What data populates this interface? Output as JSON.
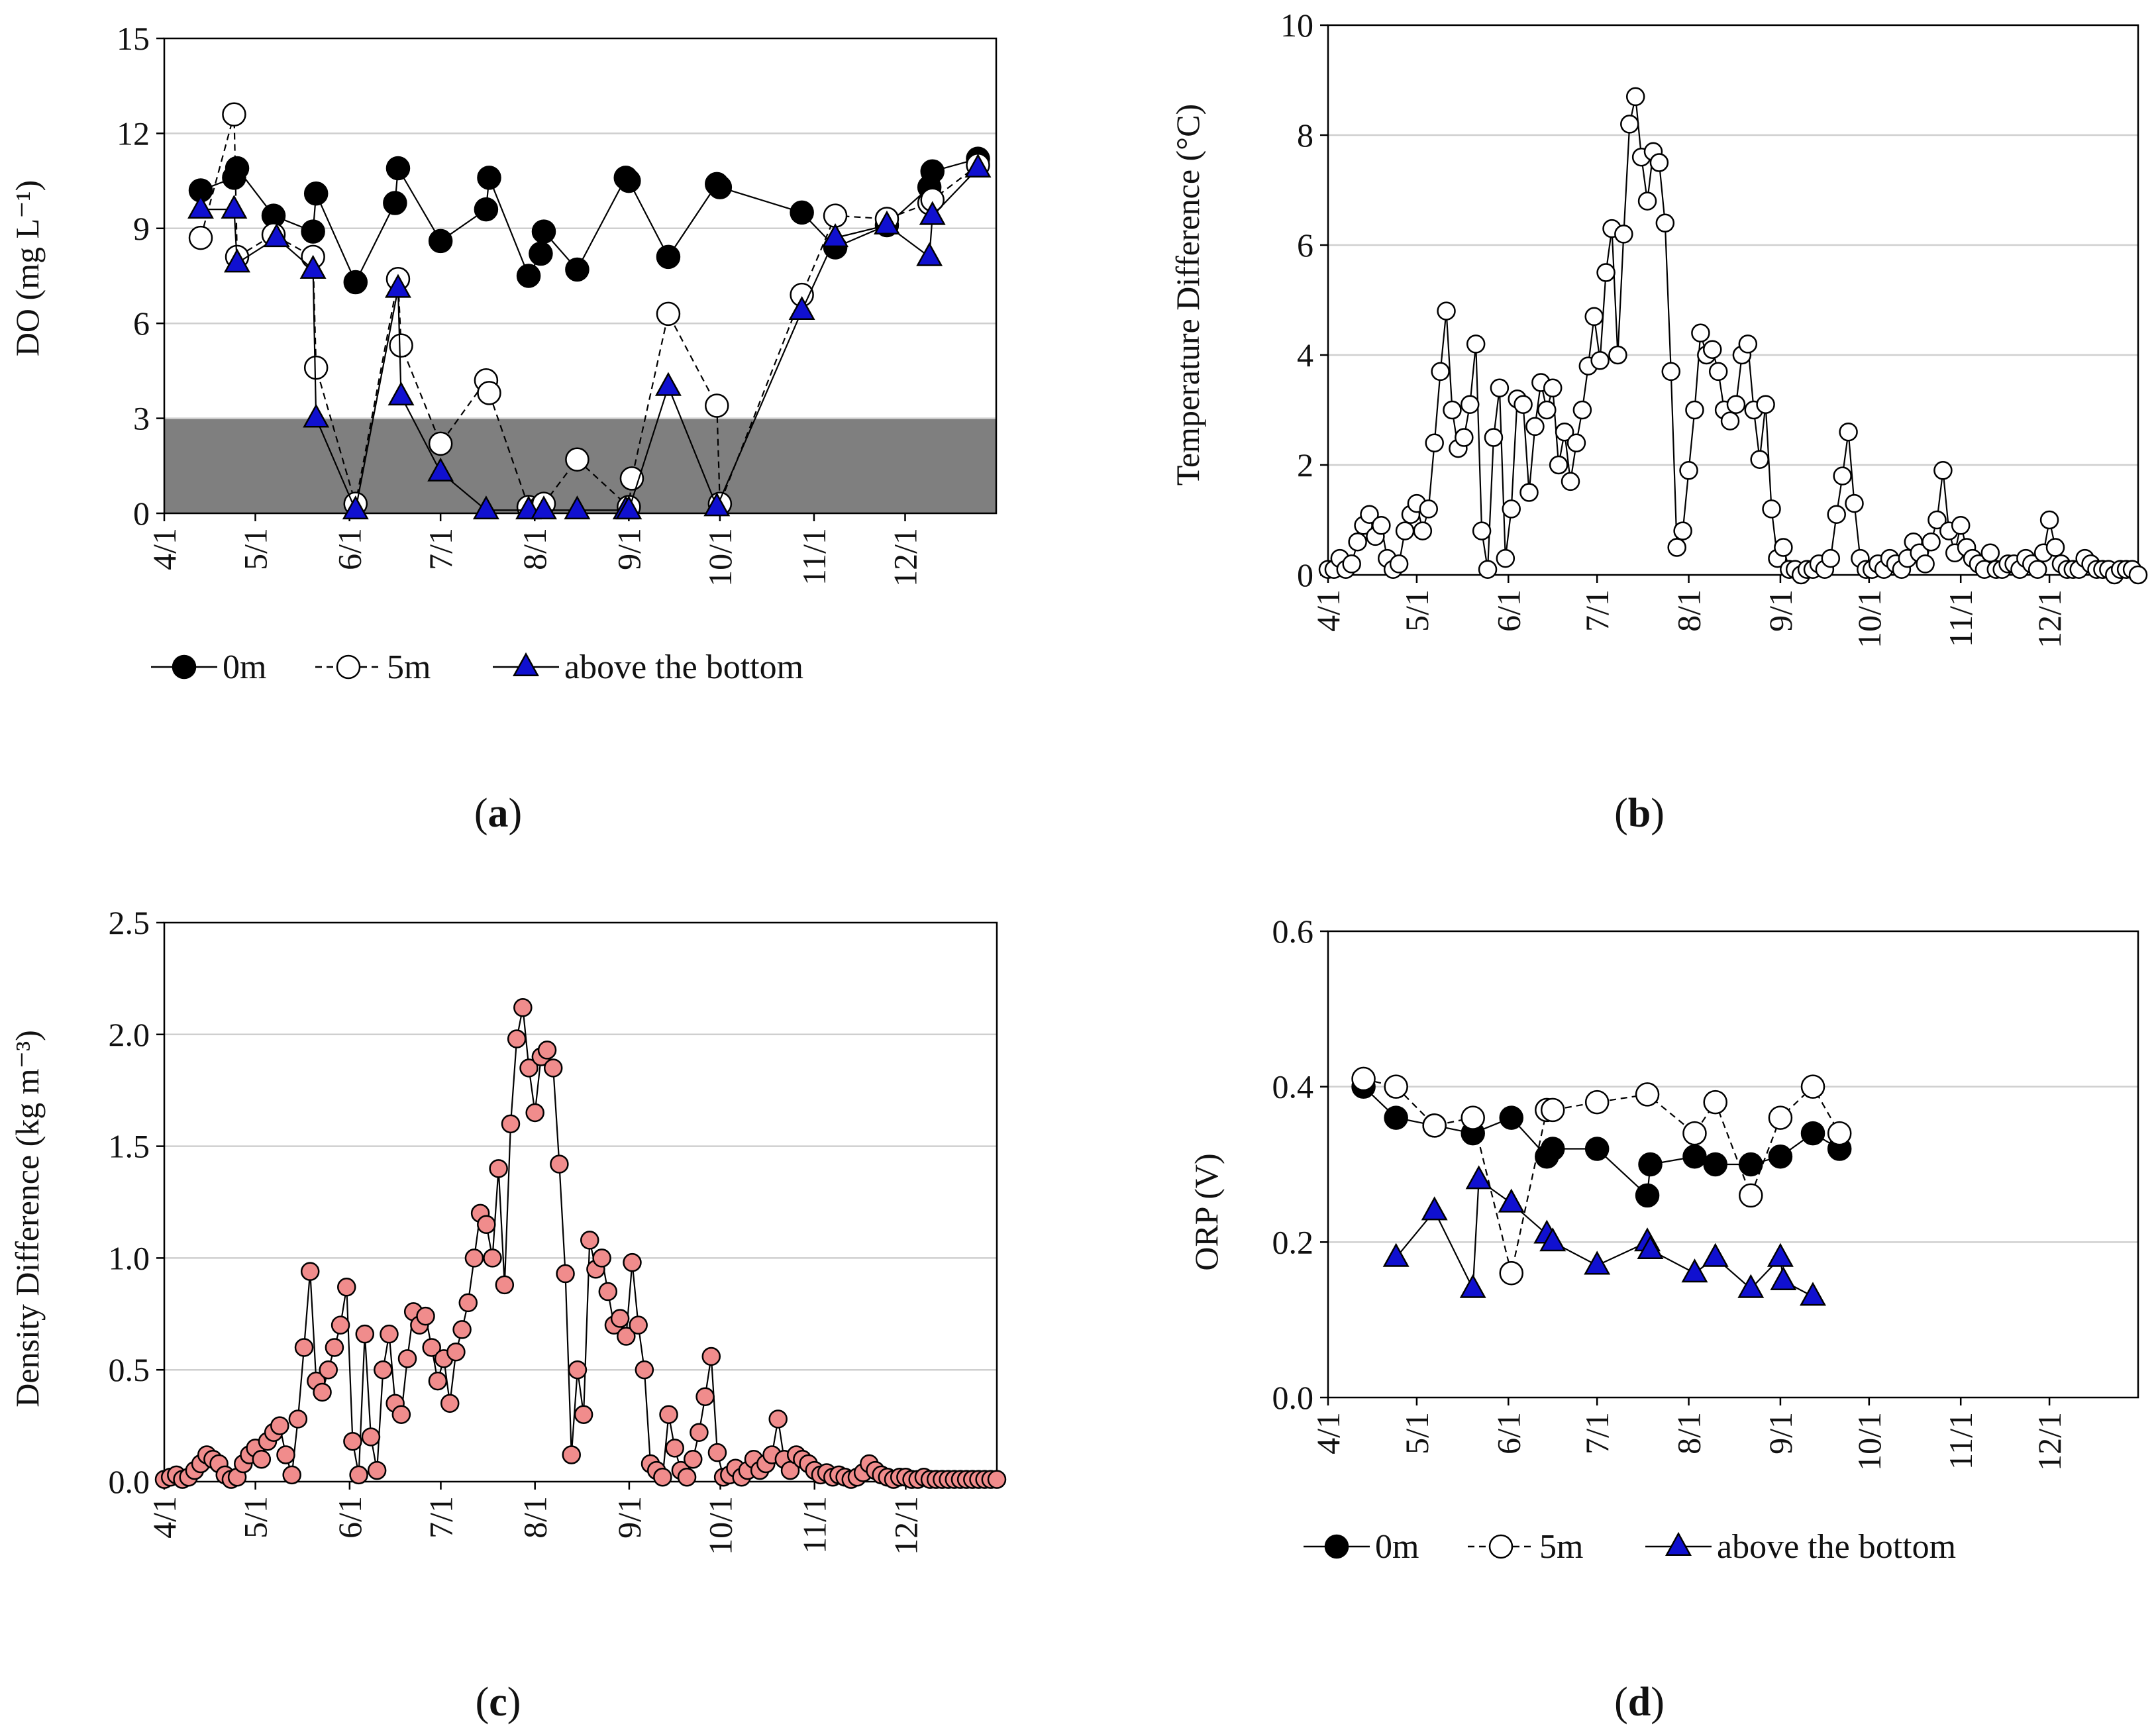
{
  "colors": {
    "blue": "#1010d0",
    "pink": "#f08c8c",
    "shade": "#7f7f7f",
    "grid": "#cfcfcf"
  },
  "panels": {
    "a": {
      "tag_letter": "a"
    },
    "b": {
      "tag_letter": "b"
    },
    "c": {
      "tag_letter": "c"
    },
    "d": {
      "tag_letter": "d"
    }
  },
  "chart_data": [
    {
      "id": "a",
      "type": "line",
      "ylabel": "DO (mg L⁻¹)",
      "xlabel": "",
      "xlim": [
        0,
        274
      ],
      "ylim": [
        0,
        15
      ],
      "yticks": [
        0,
        3,
        6,
        9,
        12,
        15
      ],
      "xtick_labels": [
        "4/1",
        "5/1",
        "6/1",
        "7/1",
        "8/1",
        "9/1",
        "10/1",
        "11/1",
        "12/1"
      ],
      "xtick_days": [
        0,
        30,
        61,
        91,
        122,
        153,
        183,
        214,
        244
      ],
      "shaded_band": [
        0,
        3
      ],
      "legend": [
        "0m",
        "5m",
        "above the bottom"
      ],
      "legend_position": "bottom",
      "grid": "horizontal",
      "series": [
        {
          "name": "0m",
          "marker": "filled-circle",
          "line": "solid",
          "x": [
            "4/13",
            "4/24",
            "4/25",
            "5/7",
            "5/20",
            "5/21",
            "6/3",
            "6/16",
            "6/17",
            "7/1",
            "7/16",
            "7/17",
            "7/30",
            "8/3",
            "8/4",
            "8/15",
            "8/31",
            "9/1",
            "9/14",
            "9/30",
            "10/1",
            "10/28",
            "11/8",
            "11/25",
            "12/9",
            "12/10",
            "12/25"
          ],
          "y": [
            10.2,
            10.6,
            10.9,
            9.4,
            8.9,
            10.1,
            7.3,
            9.8,
            10.9,
            8.6,
            9.6,
            10.6,
            7.5,
            8.2,
            8.9,
            7.7,
            10.6,
            10.5,
            8.1,
            10.4,
            10.3,
            9.5,
            8.4,
            9.1,
            10.3,
            10.8,
            11.2
          ]
        },
        {
          "name": "5m",
          "marker": "open-circle",
          "line": "dashed",
          "x": [
            "4/13",
            "4/24",
            "4/25",
            "5/7",
            "5/20",
            "5/21",
            "6/3",
            "6/17",
            "6/18",
            "7/1",
            "7/16",
            "7/17",
            "7/30",
            "8/3",
            "8/4",
            "8/15",
            "9/1",
            "9/2",
            "9/14",
            "9/30",
            "10/1",
            "10/28",
            "11/8",
            "11/25",
            "12/9",
            "12/10",
            "12/25"
          ],
          "y": [
            8.7,
            12.6,
            8.1,
            8.8,
            8.1,
            4.6,
            0.3,
            7.4,
            5.3,
            2.2,
            4.2,
            3.8,
            0.2,
            0.2,
            0.3,
            1.7,
            0.2,
            1.1,
            6.3,
            3.4,
            0.3,
            6.9,
            9.4,
            9.3,
            9.8,
            9.9,
            11.0
          ]
        },
        {
          "name": "above the bottom",
          "marker": "filled-triangle",
          "line": "solid",
          "x": [
            "4/13",
            "4/24",
            "4/25",
            "5/8",
            "5/20",
            "5/21",
            "6/3",
            "6/17",
            "6/18",
            "7/1",
            "7/16",
            "7/30",
            "8/4",
            "8/15",
            "8/31",
            "9/1",
            "9/14",
            "9/30",
            "10/28",
            "11/8",
            "11/25",
            "12/9",
            "12/10",
            "12/25"
          ],
          "y": [
            9.6,
            9.6,
            7.9,
            8.7,
            7.7,
            3.0,
            0.1,
            7.1,
            3.7,
            1.3,
            0.1,
            0.1,
            0.1,
            0.1,
            0.1,
            0.1,
            4.0,
            0.2,
            6.4,
            8.7,
            9.1,
            8.1,
            9.4,
            10.9
          ]
        }
      ]
    },
    {
      "id": "b",
      "type": "scatter",
      "ylabel": "Temperature Difference (°C)",
      "xlabel": "",
      "xlim": [
        0,
        274
      ],
      "ylim": [
        0,
        10
      ],
      "yticks": [
        0,
        2,
        4,
        6,
        8,
        10
      ],
      "xtick_labels": [
        "4/1",
        "5/1",
        "6/1",
        "7/1",
        "8/1",
        "9/1",
        "10/1",
        "11/1",
        "12/1"
      ],
      "xtick_days": [
        0,
        30,
        61,
        91,
        122,
        153,
        183,
        214,
        244
      ],
      "grid": "horizontal",
      "legend": [],
      "series": [
        {
          "name": "",
          "marker": "open-circle",
          "line": "solid",
          "x_day": [
            0,
            2,
            4,
            6,
            8,
            10,
            12,
            14,
            16,
            18,
            20,
            22,
            24,
            26,
            28,
            30,
            32,
            34,
            36,
            38,
            40,
            42,
            44,
            46,
            48,
            50,
            52,
            54,
            56,
            58,
            60,
            62,
            64,
            66,
            68,
            70,
            72,
            74,
            76,
            78,
            80,
            82,
            84,
            86,
            88,
            90,
            92,
            94,
            96,
            98,
            100,
            102,
            104,
            106,
            108,
            110,
            112,
            114,
            116,
            118,
            120,
            122,
            124,
            126,
            128,
            130,
            132,
            134,
            136,
            138,
            140,
            142,
            144,
            146,
            148,
            150,
            152,
            154,
            156,
            158,
            160,
            162,
            164,
            166,
            168,
            170,
            172,
            174,
            176,
            178,
            180,
            182,
            184,
            186,
            188,
            190,
            192,
            194,
            196,
            198,
            200,
            202,
            204,
            206,
            208,
            210,
            212,
            214,
            216,
            218,
            220,
            222,
            224,
            226,
            228,
            230,
            232,
            234,
            236,
            238,
            240,
            242,
            244,
            246,
            248,
            250,
            252,
            254,
            256,
            258,
            260,
            262,
            264,
            266,
            268,
            270,
            272,
            274
          ],
          "y": [
            0.1,
            0.1,
            0.3,
            0.1,
            0.2,
            0.6,
            0.9,
            1.1,
            0.7,
            0.9,
            0.3,
            0.1,
            0.2,
            0.8,
            1.1,
            1.3,
            0.8,
            1.2,
            2.4,
            3.7,
            4.8,
            3.0,
            2.3,
            2.5,
            3.1,
            4.2,
            0.8,
            0.1,
            2.5,
            3.4,
            0.3,
            1.2,
            3.2,
            3.1,
            1.5,
            2.7,
            3.5,
            3.0,
            3.4,
            2.0,
            2.6,
            1.7,
            2.4,
            3.0,
            3.8,
            4.7,
            3.9,
            5.5,
            6.3,
            4.0,
            6.2,
            8.2,
            8.7,
            7.6,
            6.8,
            7.7,
            7.5,
            6.4,
            3.7,
            0.5,
            0.8,
            1.9,
            3.0,
            4.4,
            4.0,
            4.1,
            3.7,
            3.0,
            2.8,
            3.1,
            4.0,
            4.2,
            3.0,
            2.1,
            3.1,
            1.2,
            0.3,
            0.5,
            0.1,
            0.1,
            0.0,
            0.1,
            0.1,
            0.2,
            0.1,
            0.3,
            1.1,
            1.8,
            2.6,
            1.3,
            0.3,
            0.1,
            0.1,
            0.2,
            0.1,
            0.3,
            0.2,
            0.1,
            0.3,
            0.6,
            0.4,
            0.2,
            0.6,
            1.0,
            1.9,
            0.8,
            0.4,
            0.9,
            0.5,
            0.3,
            0.2,
            0.1,
            0.4,
            0.1,
            0.1,
            0.2,
            0.2,
            0.1,
            0.3,
            0.2,
            0.1,
            0.4,
            1.0,
            0.5,
            0.2,
            0.1,
            0.1,
            0.1,
            0.3,
            0.2,
            0.1,
            0.1,
            0.1,
            0.0,
            0.1,
            0.1,
            0.1,
            0.0
          ]
        }
      ]
    },
    {
      "id": "c",
      "type": "scatter",
      "ylabel": "Density Difference (kg m⁻³)",
      "xlabel": "",
      "xlim": [
        0,
        274
      ],
      "ylim": [
        0,
        2.5
      ],
      "yticks": [
        0.0,
        0.5,
        1.0,
        1.5,
        2.0,
        2.5
      ],
      "ytick_labels": [
        "0.0",
        "0.5",
        "1.0",
        "1.5",
        "2.0",
        "2.5"
      ],
      "xtick_labels": [
        "4/1",
        "5/1",
        "6/1",
        "7/1",
        "8/1",
        "9/1",
        "10/1",
        "11/1",
        "12/1"
      ],
      "xtick_days": [
        0,
        30,
        61,
        91,
        122,
        153,
        183,
        214,
        244
      ],
      "grid": "horizontal",
      "legend": [],
      "series": [
        {
          "name": "",
          "marker": "filled-circle-pink",
          "line": "solid",
          "x_day": [
            0,
            2,
            4,
            6,
            8,
            10,
            12,
            14,
            16,
            18,
            20,
            22,
            24,
            26,
            28,
            30,
            32,
            34,
            36,
            38,
            40,
            42,
            44,
            46,
            48,
            50,
            52,
            54,
            56,
            58,
            60,
            62,
            64,
            66,
            68,
            70,
            72,
            74,
            76,
            78,
            80,
            82,
            84,
            86,
            88,
            90,
            92,
            94,
            96,
            98,
            100,
            102,
            104,
            106,
            108,
            110,
            112,
            114,
            116,
            118,
            120,
            122,
            124,
            126,
            128,
            130,
            132,
            134,
            136,
            138,
            140,
            142,
            144,
            146,
            148,
            150,
            152,
            154,
            156,
            158,
            160,
            162,
            164,
            166,
            168,
            170,
            172,
            174,
            176,
            178,
            180,
            182,
            184,
            186,
            188,
            190,
            192,
            194,
            196,
            198,
            200,
            202,
            204,
            206,
            208,
            210,
            212,
            214,
            216,
            218,
            220,
            222,
            224,
            226,
            228,
            230,
            232,
            234,
            236,
            238,
            240,
            242,
            244,
            246,
            248,
            250,
            252,
            254,
            256,
            258,
            260,
            262,
            264,
            266,
            268,
            270,
            272,
            274
          ],
          "y": [
            0.01,
            0.02,
            0.03,
            0.01,
            0.02,
            0.05,
            0.08,
            0.12,
            0.1,
            0.08,
            0.03,
            0.01,
            0.02,
            0.08,
            0.12,
            0.15,
            0.1,
            0.18,
            0.22,
            0.25,
            0.12,
            0.03,
            0.28,
            0.6,
            0.94,
            0.45,
            0.4,
            0.5,
            0.6,
            0.7,
            0.87,
            0.18,
            0.03,
            0.66,
            0.2,
            0.05,
            0.5,
            0.66,
            0.35,
            0.3,
            0.55,
            0.76,
            0.7,
            0.74,
            0.6,
            0.45,
            0.55,
            0.35,
            0.58,
            0.68,
            0.8,
            1.0,
            1.2,
            1.15,
            1.0,
            1.4,
            0.88,
            1.6,
            1.98,
            2.12,
            1.85,
            1.65,
            1.9,
            1.93,
            1.85,
            1.42,
            0.93,
            0.12,
            0.5,
            0.3,
            1.08,
            0.95,
            1.0,
            0.85,
            0.7,
            0.73,
            0.65,
            0.98,
            0.7,
            0.5,
            0.08,
            0.05,
            0.02,
            0.3,
            0.15,
            0.05,
            0.02,
            0.1,
            0.22,
            0.38,
            0.56,
            0.13,
            0.02,
            0.03,
            0.06,
            0.02,
            0.05,
            0.1,
            0.05,
            0.08,
            0.12,
            0.28,
            0.1,
            0.05,
            0.12,
            0.1,
            0.08,
            0.05,
            0.03,
            0.04,
            0.02,
            0.03,
            0.02,
            0.01,
            0.02,
            0.04,
            0.08,
            0.05,
            0.03,
            0.02,
            0.01,
            0.02,
            0.02,
            0.01,
            0.01,
            0.02,
            0.01,
            0.01,
            0.01,
            0.01,
            0.01,
            0.01,
            0.01,
            0.01,
            0.01,
            0.01,
            0.01,
            0.01
          ]
        }
      ]
    },
    {
      "id": "d",
      "type": "line",
      "ylabel": "ORP (V)",
      "xlabel": "",
      "xlim": [
        0,
        274
      ],
      "ylim": [
        0,
        0.6
      ],
      "yticks": [
        0.0,
        0.2,
        0.4,
        0.6
      ],
      "ytick_labels": [
        "0.0",
        "0.2",
        "0.4",
        "0.6"
      ],
      "xtick_labels": [
        "4/1",
        "5/1",
        "6/1",
        "7/1",
        "8/1",
        "9/1",
        "10/1",
        "11/1",
        "12/1"
      ],
      "xtick_days": [
        0,
        30,
        61,
        91,
        122,
        153,
        183,
        214,
        244
      ],
      "legend": [
        "0m",
        "5m",
        "above the bottom"
      ],
      "legend_position": "bottom",
      "grid": "horizontal",
      "series": [
        {
          "name": "0m",
          "marker": "filled-circle",
          "line": "solid",
          "x_day": [
            12,
            23,
            36,
            49,
            62,
            74,
            76,
            91,
            108,
            109,
            124,
            131,
            143,
            153,
            164,
            173
          ],
          "y": [
            0.4,
            0.36,
            0.35,
            0.34,
            0.36,
            0.31,
            0.32,
            0.32,
            0.26,
            0.3,
            0.31,
            0.3,
            0.3,
            0.31,
            0.34,
            0.32
          ]
        },
        {
          "name": "5m",
          "marker": "open-circle",
          "line": "dashed",
          "x_day": [
            12,
            23,
            36,
            49,
            62,
            74,
            76,
            91,
            108,
            124,
            131,
            143,
            153,
            164,
            173
          ],
          "y": [
            0.41,
            0.4,
            0.35,
            0.36,
            0.16,
            0.37,
            0.37,
            0.38,
            0.39,
            0.34,
            0.38,
            0.26,
            0.36,
            0.4,
            0.34
          ]
        },
        {
          "name": "above the bottom",
          "marker": "filled-triangle",
          "line": "solid",
          "x_day": [
            23,
            36,
            49,
            51,
            62,
            74,
            76,
            91,
            108,
            109,
            124,
            131,
            143,
            153,
            154,
            164
          ],
          "y": [
            0.18,
            0.24,
            0.14,
            0.28,
            0.25,
            0.21,
            0.2,
            0.17,
            0.2,
            0.19,
            0.16,
            0.18,
            0.14,
            0.18,
            0.15,
            0.13
          ]
        }
      ]
    }
  ]
}
